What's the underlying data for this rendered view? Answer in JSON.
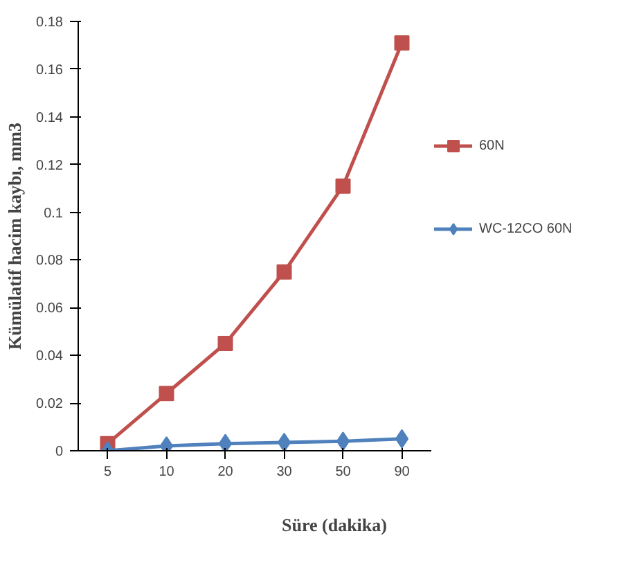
{
  "chart_data": {
    "type": "line",
    "xlabel": "Süre (dakika)",
    "ylabel": "Kümülatif hacim kaybı, mm3",
    "categories": [
      "5",
      "10",
      "20",
      "30",
      "50",
      "90"
    ],
    "series": [
      {
        "name": "60N",
        "color": "#c0504d",
        "marker": "square",
        "values": [
          0.003,
          0.024,
          0.045,
          0.075,
          0.111,
          0.171
        ]
      },
      {
        "name": "WC-12CO 60N",
        "color": "#4f81bd",
        "marker": "diamond",
        "values": [
          0,
          0.002,
          0.003,
          0.0035,
          0.004,
          0.005
        ]
      }
    ],
    "ylim": [
      0,
      0.18
    ],
    "yticks": [
      0,
      0.02,
      0.04,
      0.06,
      0.08,
      0.1,
      0.12,
      0.14,
      0.16,
      0.18
    ],
    "grid": false,
    "legend": "right"
  }
}
